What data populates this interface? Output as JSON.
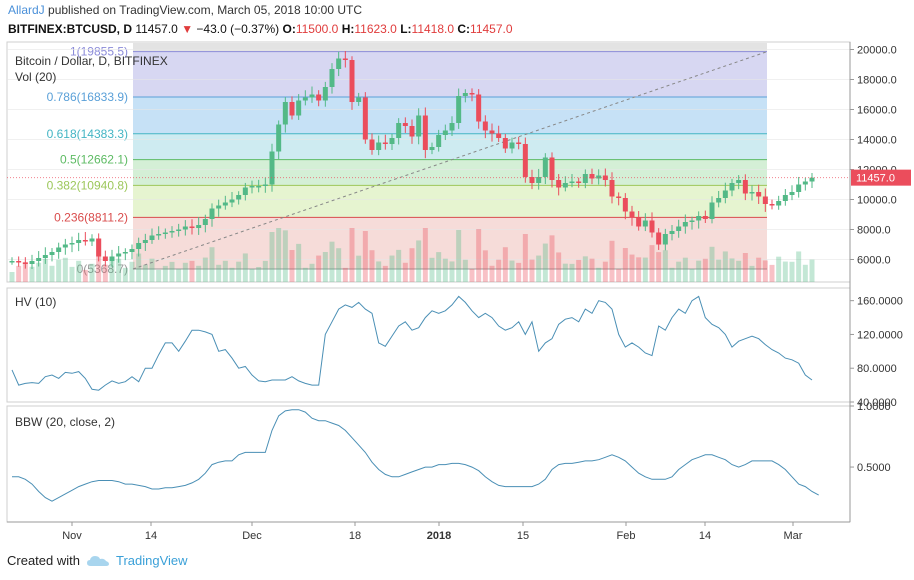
{
  "header": {
    "author": "AllardJ",
    "published_text": "published on TradingView.com, March 05, 2018 10:00 UTC",
    "symbol": "BITFINEX:BTCUSD, D",
    "last": "11457.0",
    "change": "−43.0 (−0.37%)",
    "open_label": "O:",
    "open": "11500.0",
    "high_label": "H:",
    "high": "11623.0",
    "low_label": "L:",
    "low": "11418.0",
    "close_label": "C:",
    "close": "11457.0"
  },
  "footer": {
    "created_with": "Created with",
    "brand": "TradingView"
  },
  "colors": {
    "up": "#53b987",
    "down": "#eb4d5c",
    "indicator": "#4a8fb5",
    "grid": "#e6e6e6"
  },
  "chart_data": [
    {
      "type": "candlestick",
      "title": "Bitcoin / Dollar, D, BITFINEX",
      "volume_label": "Vol (20)",
      "ylim": [
        4500,
        20500
      ],
      "y_ticks": [
        "20000.0",
        "18000.0",
        "16000.0",
        "14000.0",
        "12000.0",
        "10000.0",
        "8000.0",
        "6000.0"
      ],
      "last_price_label": "11457.0",
      "x_ticks": [
        "Nov",
        "14",
        "Dec",
        "18",
        "2018",
        "15",
        "Feb",
        "14",
        "Mar"
      ],
      "fib_levels": [
        {
          "label": "1(19855.5)",
          "value": 19855.5
        },
        {
          "label": "0.786(16833.9)",
          "value": 16833.9
        },
        {
          "label": "0.618(14383.3)",
          "value": 14383.3
        },
        {
          "label": "0.5(12662.1)",
          "value": 12662.1
        },
        {
          "label": "0.382(10940.8)",
          "value": 10940.8
        },
        {
          "label": "0.236(8811.2)",
          "value": 8811.2
        },
        {
          "label": "0(5368.7)",
          "value": 5368.7
        }
      ],
      "close_series": [
        5900,
        5800,
        5700,
        5900,
        6100,
        6300,
        6500,
        6800,
        7000,
        7100,
        7300,
        7200,
        7400,
        6200,
        5900,
        6200,
        6400,
        6500,
        6700,
        7100,
        7300,
        7600,
        7700,
        7800,
        7900,
        8000,
        8200,
        8100,
        8300,
        8700,
        9400,
        9600,
        9800,
        10000,
        10300,
        10800,
        10900,
        10900,
        11000,
        13200,
        15000,
        16500,
        15600,
        16600,
        16800,
        17000,
        16600,
        17500,
        18700,
        19400,
        19300,
        16500,
        16800,
        14000,
        13300,
        13800,
        13700,
        14100,
        15100,
        14900,
        14200,
        15600,
        13300,
        13500,
        14300,
        14600,
        15100,
        16900,
        17100,
        17000,
        15200,
        14600,
        14400,
        14100,
        13400,
        13800,
        13700,
        11500,
        11100,
        11500,
        12800,
        11300,
        10800,
        11100,
        11200,
        11100,
        11700,
        11400,
        11600,
        11300,
        10200,
        10100,
        9200,
        8800,
        8200,
        8600,
        7800,
        7000,
        7700,
        7900,
        8200,
        8500,
        8600,
        8900,
        8700,
        9800,
        10100,
        10600,
        11100,
        11300,
        10400,
        10500,
        10200,
        9700,
        9600,
        9900,
        10300,
        10500,
        11000,
        11200,
        11457
      ]
    },
    {
      "type": "line",
      "title": "HV (10)",
      "ylim": [
        40,
        175
      ],
      "y_ticks": [
        "160.0000",
        "120.0000",
        "80.0000",
        "40.0000"
      ],
      "values": [
        78,
        60,
        62,
        63,
        62,
        70,
        72,
        68,
        75,
        74,
        76,
        68,
        55,
        54,
        60,
        65,
        62,
        64,
        70,
        64,
        80,
        80,
        96,
        110,
        110,
        100,
        112,
        125,
        125,
        123,
        120,
        100,
        102,
        92,
        80,
        82,
        72,
        65,
        64,
        66,
        66,
        66,
        70,
        65,
        62,
        60,
        60,
        120,
        135,
        150,
        155,
        152,
        158,
        150,
        145,
        110,
        106,
        118,
        130,
        135,
        125,
        128,
        140,
        148,
        145,
        148,
        155,
        165,
        158,
        148,
        140,
        145,
        140,
        130,
        125,
        128,
        135,
        120,
        135,
        100,
        110,
        115,
        132,
        138,
        140,
        135,
        150,
        145,
        160,
        158,
        150,
        120,
        105,
        110,
        105,
        98,
        95,
        130,
        125,
        140,
        150,
        145,
        160,
        165,
        140,
        132,
        128,
        120,
        105,
        112,
        115,
        118,
        115,
        108,
        102,
        98,
        92,
        90,
        86,
        72,
        66
      ]
    },
    {
      "type": "line",
      "title": "BBW (20, close, 2)",
      "ylim": [
        0.05,
        1.0
      ],
      "y_ticks": [
        "1.0000",
        "0.5000"
      ],
      "values": [
        0.42,
        0.42,
        0.4,
        0.36,
        0.3,
        0.25,
        0.22,
        0.25,
        0.28,
        0.31,
        0.34,
        0.36,
        0.38,
        0.39,
        0.39,
        0.39,
        0.38,
        0.36,
        0.36,
        0.35,
        0.34,
        0.32,
        0.32,
        0.33,
        0.33,
        0.34,
        0.35,
        0.37,
        0.4,
        0.45,
        0.52,
        0.54,
        0.55,
        0.55,
        0.6,
        0.62,
        0.62,
        0.62,
        0.62,
        0.8,
        0.92,
        0.96,
        0.97,
        0.97,
        0.95,
        0.9,
        0.88,
        0.88,
        0.86,
        0.84,
        0.8,
        0.74,
        0.68,
        0.62,
        0.54,
        0.48,
        0.44,
        0.42,
        0.42,
        0.44,
        0.46,
        0.48,
        0.5,
        0.5,
        0.52,
        0.52,
        0.53,
        0.53,
        0.52,
        0.5,
        0.47,
        0.42,
        0.38,
        0.35,
        0.34,
        0.34,
        0.34,
        0.34,
        0.34,
        0.36,
        0.4,
        0.48,
        0.52,
        0.53,
        0.53,
        0.54,
        0.55,
        0.55,
        0.56,
        0.58,
        0.6,
        0.58,
        0.55,
        0.5,
        0.45,
        0.42,
        0.4,
        0.4,
        0.4,
        0.42,
        0.48,
        0.52,
        0.56,
        0.58,
        0.6,
        0.6,
        0.58,
        0.56,
        0.52,
        0.5,
        0.52,
        0.55,
        0.55,
        0.55,
        0.55,
        0.52,
        0.48,
        0.42,
        0.36,
        0.34,
        0.3,
        0.27
      ]
    }
  ]
}
